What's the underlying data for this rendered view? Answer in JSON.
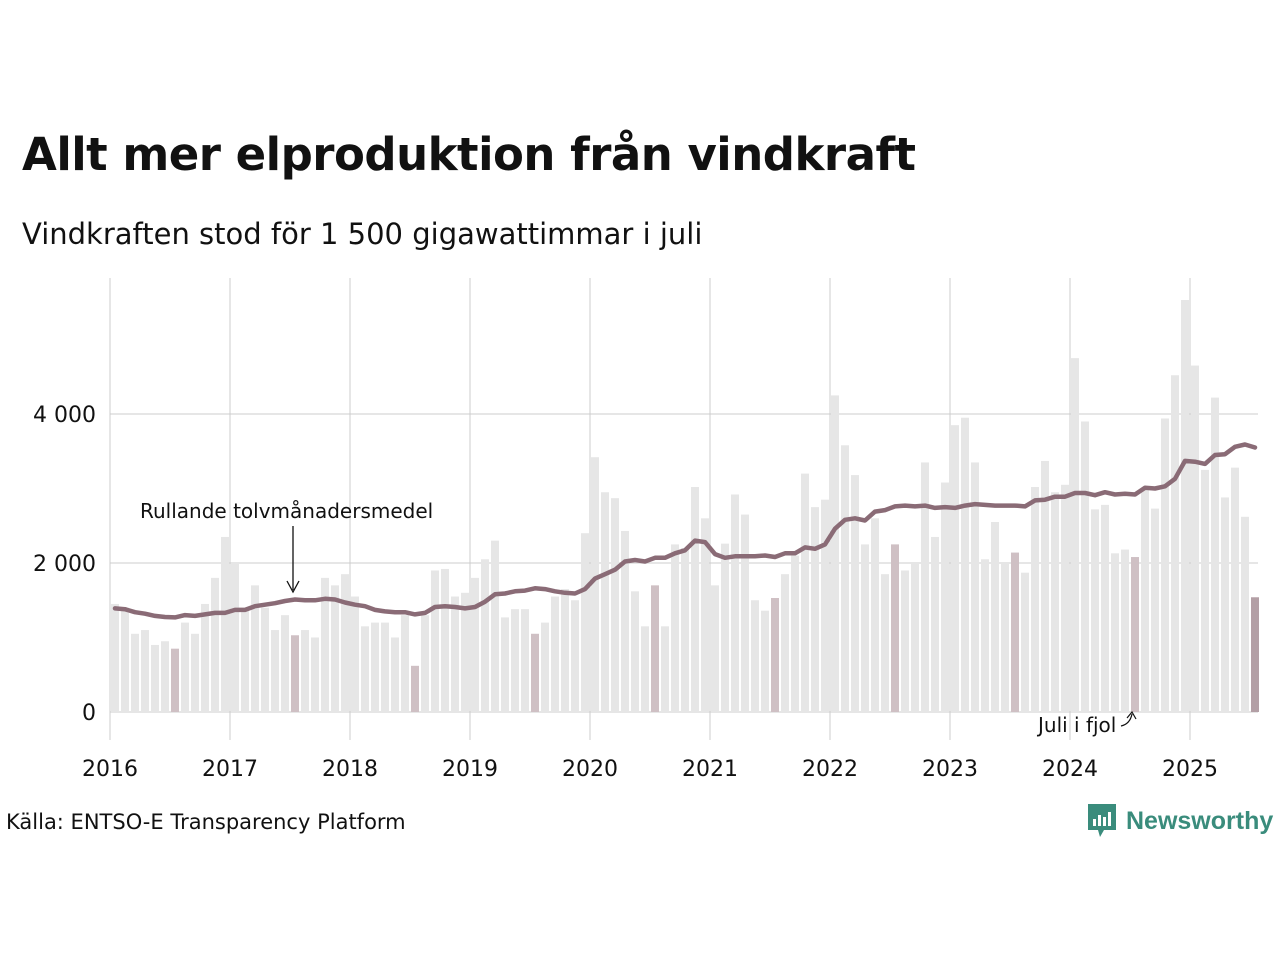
{
  "header": {
    "title": "Allt mer elproduktion från vindkraft",
    "subtitle": "Vindkraften stod för 1 500 gigawattimmar i juli"
  },
  "footer": {
    "source": "Källa: ENTSO-E Transparency Platform",
    "logo_text": "Newsworthy"
  },
  "colors": {
    "bar": "#e6e6e6",
    "bar_highlight": "#cfc0c4",
    "bar_latest": "#b39fa5",
    "line": "#8a6b76",
    "grid": "#cccccc",
    "brand": "#3a8c7c"
  },
  "chart_data": {
    "type": "bar",
    "x_start": "2016-01",
    "x_end": "2025-07",
    "ylim": [
      -350,
      5800
    ],
    "yticks": [
      0,
      2000,
      4000
    ],
    "ytick_labels": [
      "0",
      "2 000",
      "4 000"
    ],
    "xtick_labels": [
      "2016",
      "2017",
      "2018",
      "2019",
      "2020",
      "2021",
      "2022",
      "2023",
      "2024",
      "2025"
    ],
    "grid": true,
    "series": [
      {
        "type": "bar",
        "values": [
          1450,
          1400,
          1050,
          1100,
          900,
          950,
          850,
          1200,
          1050,
          1450,
          1800,
          2350,
          2000,
          1400,
          1700,
          1400,
          1100,
          1300,
          1030,
          1100,
          1000,
          1800,
          1700,
          1850,
          1550,
          1150,
          1200,
          1200,
          1000,
          1300,
          620,
          1300,
          1900,
          1920,
          1550,
          1600,
          1800,
          2050,
          2300,
          1270,
          1380,
          1380,
          1050,
          1200,
          1550,
          1650,
          1500,
          2400,
          3420,
          2950,
          2870,
          2430,
          1620,
          1150,
          1700,
          1150,
          2250,
          2200,
          3020,
          2600,
          1700,
          2260,
          2920,
          2650,
          1500,
          1360,
          1530,
          1850,
          2100,
          3200,
          2750,
          2850,
          4250,
          3580,
          3180,
          2250,
          2600,
          1850,
          2250,
          1900,
          2000,
          3350,
          2350,
          3080,
          3850,
          3950,
          3350,
          2050,
          2550,
          2000,
          2140,
          1870,
          3020,
          3370,
          2950,
          3050,
          4750,
          3900,
          2720,
          2780,
          2130,
          2180,
          2080,
          3000,
          2730,
          3940,
          4520,
          5530,
          4650,
          3250,
          4220,
          2880,
          3280,
          2620,
          1540
        ],
        "highlight_months": [
          "2016-07",
          "2017-07",
          "2018-07",
          "2019-07",
          "2020-07",
          "2021-07",
          "2022-07",
          "2023-07",
          "2024-07",
          "2025-07"
        ]
      },
      {
        "type": "line",
        "values": [
          1390,
          1380,
          1340,
          1320,
          1290,
          1275,
          1270,
          1300,
          1290,
          1310,
          1330,
          1330,
          1370,
          1370,
          1420,
          1440,
          1460,
          1490,
          1510,
          1500,
          1500,
          1520,
          1510,
          1470,
          1440,
          1420,
          1370,
          1350,
          1340,
          1340,
          1310,
          1330,
          1410,
          1420,
          1410,
          1390,
          1410,
          1480,
          1580,
          1590,
          1620,
          1630,
          1660,
          1650,
          1620,
          1600,
          1590,
          1650,
          1790,
          1850,
          1910,
          2020,
          2040,
          2020,
          2070,
          2070,
          2130,
          2170,
          2300,
          2280,
          2120,
          2070,
          2090,
          2090,
          2090,
          2100,
          2080,
          2130,
          2130,
          2210,
          2190,
          2250,
          2460,
          2580,
          2600,
          2570,
          2690,
          2710,
          2760,
          2770,
          2760,
          2770,
          2740,
          2750,
          2740,
          2770,
          2790,
          2780,
          2770,
          2770,
          2770,
          2760,
          2840,
          2850,
          2890,
          2890,
          2940,
          2940,
          2910,
          2950,
          2920,
          2930,
          2920,
          3010,
          3000,
          3030,
          3130,
          3370,
          3360,
          3330,
          3450,
          3460,
          3560,
          3590,
          3550
        ]
      }
    ],
    "annotations": [
      "Rullande tolvmånadersmedel",
      "Juli i fjol"
    ]
  }
}
